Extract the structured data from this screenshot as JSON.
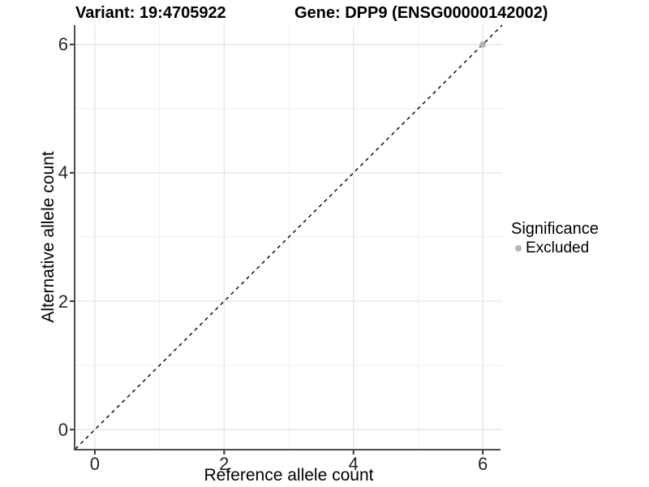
{
  "titles": {
    "left": "Variant: 19:4705922",
    "right": "Gene: DPP9 (ENSG00000142002)"
  },
  "axes": {
    "x": {
      "label": "Reference allele count",
      "tick_labels": [
        "0",
        "2",
        "4",
        "6"
      ]
    },
    "y": {
      "label": "Alternative allele count",
      "tick_labels": [
        "0",
        "2",
        "4",
        "6"
      ]
    }
  },
  "legend": {
    "title": "Significance",
    "items": [
      {
        "label": "Excluded",
        "color": "#b3b3b3"
      }
    ]
  },
  "colors": {
    "background": "#ffffff",
    "panel_background": "#ffffff",
    "grid_major": "#e3e3e3",
    "grid_minor": "#efefef",
    "axis_line": "#4d4d4d",
    "tick_mark": "#333333",
    "reference_line": "#000000",
    "excluded_point": "#b3b3b3"
  },
  "chart_data": {
    "type": "scatter",
    "title": "Variant: 19:4705922 | Gene: DPP9 (ENSG00000142002)",
    "xlabel": "Reference allele count",
    "ylabel": "Alternative allele count",
    "xlim": [
      -0.3,
      6.3
    ],
    "ylim": [
      -0.3,
      6.3
    ],
    "x_major_ticks": [
      0,
      2,
      4,
      6
    ],
    "y_major_ticks": [
      0,
      2,
      4,
      6
    ],
    "x_minor_ticks": [
      1,
      3,
      5
    ],
    "y_minor_ticks": [
      1,
      3,
      5
    ],
    "grid": true,
    "legend_position": "right",
    "series": [
      {
        "name": "Excluded",
        "color": "#b3b3b3",
        "marker": "circle",
        "points": [
          {
            "x": 6,
            "y": 6
          }
        ]
      }
    ],
    "reference_line": {
      "type": "identity (y = x)",
      "style": "dashed",
      "color": "#000000",
      "from": [
        -0.3,
        -0.3
      ],
      "to": [
        6.3,
        6.3
      ]
    }
  }
}
